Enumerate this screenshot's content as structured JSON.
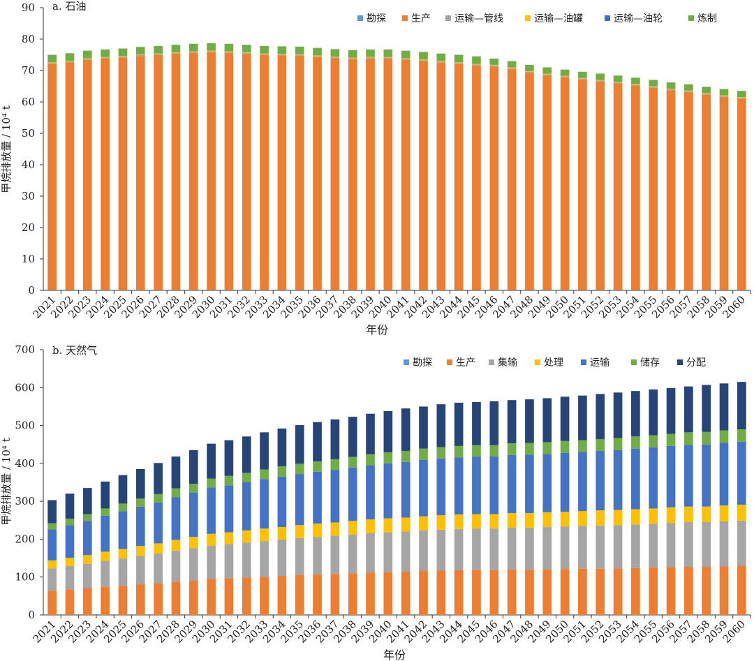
{
  "chart_data": [
    {
      "type": "bar",
      "stacked": true,
      "title": "a. 石油",
      "xlabel": "年份",
      "ylabel": "甲烷排放量 / 10⁴ t",
      "ylim": [
        0,
        90
      ],
      "yticks": [
        0,
        10,
        20,
        30,
        40,
        50,
        60,
        70,
        80,
        90
      ],
      "legend": "top-right",
      "grid": false,
      "categories": [
        "2021",
        "2022",
        "2023",
        "2024",
        "2025",
        "2026",
        "2027",
        "2028",
        "2029",
        "2030",
        "2031",
        "2032",
        "2033",
        "2034",
        "2035",
        "2036",
        "2037",
        "2038",
        "2039",
        "2040",
        "2041",
        "2042",
        "2043",
        "2044",
        "2045",
        "2046",
        "2047",
        "2048",
        "2049",
        "2050",
        "2051",
        "2052",
        "2053",
        "2054",
        "2055",
        "2056",
        "2057",
        "2058",
        "2059",
        "2060"
      ],
      "series": [
        {
          "name": "勘探",
          "color": "#5b9bd5",
          "values": [
            0.1,
            0.1,
            0.1,
            0.1,
            0.1,
            0.1,
            0.1,
            0.1,
            0.1,
            0.1,
            0.1,
            0.1,
            0.1,
            0.1,
            0.1,
            0.1,
            0.1,
            0.1,
            0.1,
            0.1,
            0.1,
            0.1,
            0.1,
            0.1,
            0.1,
            0.1,
            0.1,
            0.1,
            0.1,
            0.1,
            0.1,
            0.1,
            0.1,
            0.1,
            0.1,
            0.1,
            0.1,
            0.1,
            0.1,
            0.1
          ]
        },
        {
          "name": "生产",
          "color": "#ed7d31",
          "values": [
            72.0,
            72.5,
            73.3,
            73.7,
            74.0,
            74.5,
            74.8,
            75.2,
            75.5,
            75.7,
            75.5,
            75.2,
            74.8,
            74.7,
            74.6,
            74.2,
            73.8,
            73.5,
            73.7,
            73.7,
            73.3,
            72.9,
            72.4,
            72.0,
            71.5,
            71.2,
            70.4,
            69.2,
            68.4,
            67.7,
            67.0,
            66.4,
            65.8,
            65.1,
            64.4,
            63.6,
            63.0,
            62.2,
            61.5,
            60.9
          ]
        },
        {
          "name": "运输—管线",
          "color": "#a5a5a5",
          "values": [
            0.3,
            0.3,
            0.3,
            0.3,
            0.3,
            0.3,
            0.3,
            0.3,
            0.3,
            0.3,
            0.3,
            0.3,
            0.3,
            0.3,
            0.3,
            0.3,
            0.3,
            0.3,
            0.3,
            0.3,
            0.3,
            0.3,
            0.3,
            0.3,
            0.3,
            0.3,
            0.3,
            0.3,
            0.3,
            0.3,
            0.3,
            0.3,
            0.3,
            0.3,
            0.3,
            0.3,
            0.3,
            0.3,
            0.3,
            0.3
          ]
        },
        {
          "name": "运输—油罐",
          "color": "#ffc000",
          "values": [
            0.2,
            0.2,
            0.2,
            0.2,
            0.2,
            0.2,
            0.2,
            0.2,
            0.2,
            0.2,
            0.2,
            0.2,
            0.2,
            0.2,
            0.2,
            0.2,
            0.2,
            0.2,
            0.2,
            0.2,
            0.2,
            0.2,
            0.2,
            0.2,
            0.2,
            0.2,
            0.2,
            0.2,
            0.2,
            0.2,
            0.2,
            0.2,
            0.2,
            0.2,
            0.2,
            0.2,
            0.2,
            0.2,
            0.2,
            0.2
          ]
        },
        {
          "name": "运输—油轮",
          "color": "#4472c4",
          "values": [
            0,
            0,
            0,
            0,
            0,
            0,
            0,
            0,
            0,
            0,
            0,
            0,
            0,
            0,
            0,
            0,
            0,
            0,
            0,
            0,
            0,
            0,
            0,
            0,
            0,
            0,
            0,
            0,
            0,
            0,
            0,
            0,
            0,
            0,
            0,
            0,
            0,
            0,
            0,
            0
          ]
        },
        {
          "name": "炼制",
          "color": "#70ad47",
          "values": [
            2.4,
            2.4,
            2.4,
            2.4,
            2.4,
            2.4,
            2.4,
            2.4,
            2.4,
            2.4,
            2.4,
            2.4,
            2.4,
            2.4,
            2.4,
            2.4,
            2.4,
            2.4,
            2.4,
            2.4,
            2.4,
            2.4,
            2.4,
            2.4,
            2.4,
            2.0,
            2.0,
            2.0,
            2.0,
            2.0,
            2.0,
            2.0,
            2.0,
            2.0,
            2.0,
            2.0,
            2.0,
            2.0,
            2.0,
            2.0
          ]
        }
      ]
    },
    {
      "type": "bar",
      "stacked": true,
      "title": "b. 天然气",
      "xlabel": "年份",
      "ylabel": "甲烷排放量 / 10⁴ t",
      "ylim": [
        0,
        700
      ],
      "yticks": [
        0,
        100,
        200,
        300,
        400,
        500,
        600,
        700
      ],
      "legend": "top-right",
      "grid": false,
      "categories": [
        "2021",
        "2022",
        "2023",
        "2024",
        "2025",
        "2026",
        "2027",
        "2028",
        "2029",
        "2030",
        "2031",
        "2032",
        "2033",
        "2034",
        "2035",
        "2036",
        "2037",
        "2038",
        "2039",
        "2040",
        "2041",
        "2042",
        "2043",
        "2044",
        "2045",
        "2046",
        "2047",
        "2048",
        "2049",
        "2050",
        "2051",
        "2052",
        "2053",
        "2054",
        "2055",
        "2056",
        "2057",
        "2058",
        "2059",
        "2060"
      ],
      "series": [
        {
          "name": "勘探",
          "color": "#5b9bd5",
          "values": [
            0,
            0,
            0,
            0,
            0,
            0,
            0,
            0,
            0,
            0,
            0,
            0,
            0,
            0,
            0,
            0,
            0,
            0,
            0,
            0,
            0,
            0,
            0,
            0,
            0,
            0,
            0,
            0,
            0,
            0,
            0,
            0,
            0,
            0,
            0,
            0,
            0,
            0,
            0,
            0
          ]
        },
        {
          "name": "生产",
          "color": "#ed7d31",
          "values": [
            64,
            67,
            70,
            74,
            77,
            81,
            84,
            88,
            91,
            95,
            97,
            99,
            101,
            103,
            105,
            107,
            108,
            110,
            112,
            113,
            114,
            116,
            117,
            118,
            118,
            118,
            119,
            119,
            120,
            121,
            122,
            122,
            123,
            124,
            125,
            126,
            127,
            127,
            128,
            129
          ]
        },
        {
          "name": "集输",
          "color": "#a5a5a5",
          "values": [
            59,
            62,
            65,
            69,
            72,
            75,
            78,
            82,
            85,
            88,
            90,
            92,
            94,
            96,
            98,
            99,
            101,
            102,
            104,
            105,
            106,
            107,
            108,
            109,
            110,
            110,
            111,
            111,
            112,
            112,
            113,
            114,
            114,
            115,
            116,
            117,
            118,
            118,
            119,
            120
          ]
        },
        {
          "name": "处理",
          "color": "#ffc000",
          "values": [
            21,
            22,
            23,
            24,
            25,
            26,
            27,
            28,
            30,
            31,
            31,
            32,
            33,
            33,
            34,
            35,
            35,
            36,
            36,
            37,
            37,
            37,
            38,
            38,
            38,
            38,
            39,
            39,
            39,
            39,
            39,
            40,
            40,
            40,
            40,
            41,
            41,
            41,
            42,
            42
          ]
        },
        {
          "name": "运输",
          "color": "#4472c4",
          "values": [
            82,
            86,
            90,
            95,
            100,
            104,
            108,
            113,
            117,
            122,
            124,
            127,
            130,
            133,
            135,
            137,
            139,
            141,
            143,
            145,
            147,
            149,
            150,
            151,
            152,
            152,
            153,
            154,
            154,
            156,
            156,
            157,
            158,
            160,
            161,
            162,
            163,
            164,
            165,
            166
          ]
        },
        {
          "name": "储存",
          "color": "#70ad47",
          "values": [
            16,
            17,
            18,
            19,
            20,
            21,
            22,
            23,
            23,
            24,
            25,
            25,
            26,
            27,
            27,
            27,
            28,
            28,
            29,
            29,
            29,
            30,
            30,
            30,
            30,
            30,
            31,
            31,
            31,
            31,
            31,
            31,
            32,
            32,
            32,
            32,
            33,
            33,
            33,
            33
          ]
        },
        {
          "name": "分配",
          "color": "#264478",
          "values": [
            61,
            66,
            69,
            71,
            75,
            78,
            82,
            84,
            89,
            92,
            94,
            96,
            98,
            100,
            102,
            104,
            105,
            106,
            107,
            109,
            112,
            111,
            113,
            114,
            114,
            116,
            114,
            115,
            116,
            117,
            118,
            119,
            120,
            120,
            121,
            121,
            121,
            124,
            124,
            125
          ]
        }
      ]
    }
  ]
}
